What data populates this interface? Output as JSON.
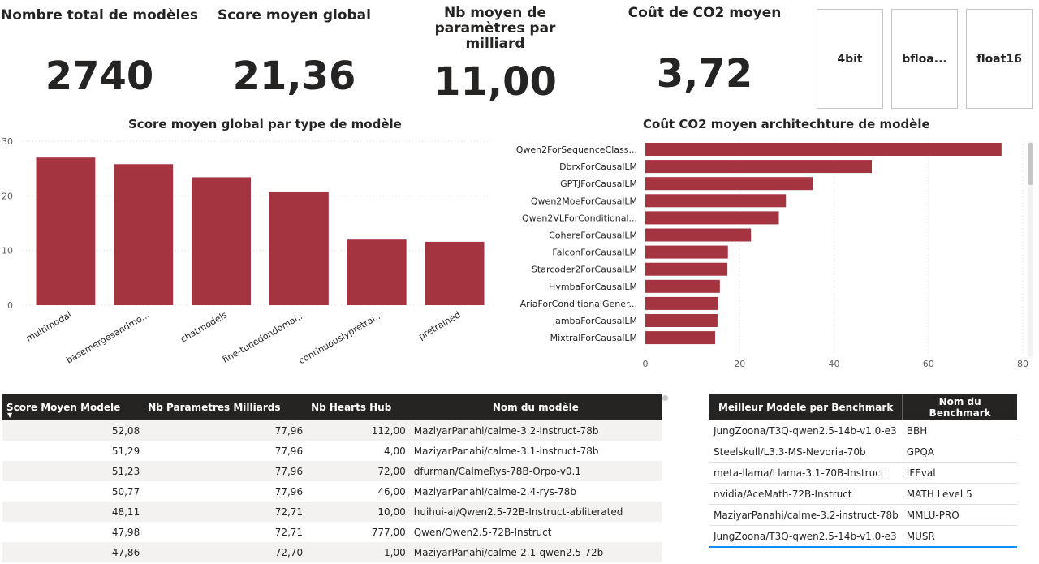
{
  "kpis": [
    {
      "title": "Nombre total de modèles",
      "value": "2740"
    },
    {
      "title": "Score moyen global",
      "value": "21,36"
    },
    {
      "title": "Nb moyen de paramètres par milliard",
      "value": "11,00"
    },
    {
      "title": "Coût de CO2 moyen",
      "value": "3,72"
    }
  ],
  "slicers": [
    "4bit",
    "bfloa...",
    "float16"
  ],
  "colors": {
    "bar": "#a4343f",
    "header": "#252423",
    "accent": "#118dff"
  },
  "chart_data": [
    {
      "type": "bar",
      "title": "Score moyen global par type de modèle",
      "categories": [
        "multimodal",
        "basemergesandmo...",
        "chatmodels",
        "fine-tunedondomai...",
        "continuouslypretrai...",
        "pretrained"
      ],
      "values": [
        27.0,
        25.8,
        23.4,
        20.8,
        12.0,
        11.6
      ],
      "yticks": [
        0,
        10,
        20,
        30
      ],
      "ylim": [
        0,
        30
      ]
    },
    {
      "type": "bar",
      "orientation": "horizontal",
      "title": "Coût CO2 moyen architechture de modèle",
      "categories": [
        "Qwen2ForSequenceClass...",
        "DbrxForCausalLM",
        "GPTJForCausalLM",
        "Qwen2MoeForCausalLM",
        "Qwen2VLForConditional...",
        "CohereForCausalLM",
        "FalconForCausalLM",
        "Starcoder2ForCausalLM",
        "HymbaForCausalLM",
        "AriaForConditionalGener...",
        "JambaForCausalLM",
        "MixtralForCausalLM"
      ],
      "values": [
        75.5,
        48.0,
        35.5,
        29.8,
        28.3,
        22.4,
        17.5,
        17.4,
        15.8,
        15.4,
        15.3,
        14.8
      ],
      "xticks": [
        0,
        20,
        40,
        60,
        80
      ],
      "xlim": [
        0,
        80
      ]
    }
  ],
  "models_table": {
    "headers": [
      "Score Moyen Modele",
      "Nb Parametres Milliards",
      "Nb Hearts Hub",
      "Nom du modèle"
    ],
    "rows": [
      [
        "52,08",
        "77,96",
        "112,00",
        "MaziyarPanahi/calme-3.2-instruct-78b"
      ],
      [
        "51,29",
        "77,96",
        "4,00",
        "MaziyarPanahi/calme-3.1-instruct-78b"
      ],
      [
        "51,23",
        "77,96",
        "72,00",
        "dfurman/CalmeRys-78B-Orpo-v0.1"
      ],
      [
        "50,77",
        "77,96",
        "46,00",
        "MaziyarPanahi/calme-2.4-rys-78b"
      ],
      [
        "48,11",
        "72,71",
        "10,00",
        "huihui-ai/Qwen2.5-72B-Instruct-abliterated"
      ],
      [
        "47,98",
        "72,71",
        "777,00",
        "Qwen/Qwen2.5-72B-Instruct"
      ],
      [
        "47,86",
        "72,70",
        "1,00",
        "MaziyarPanahi/calme-2.1-qwen2.5-72b"
      ]
    ]
  },
  "bench_table": {
    "headers": [
      "Meilleur Modele par Benchmark",
      "Nom du Benchmark"
    ],
    "rows": [
      [
        "JungZoona/T3Q-qwen2.5-14b-v1.0-e3",
        "BBH"
      ],
      [
        "Steelskull/L3.3-MS-Nevoria-70b",
        "GPQA"
      ],
      [
        "meta-llama/Llama-3.1-70B-Instruct",
        "IFEval"
      ],
      [
        "nvidia/AceMath-72B-Instruct",
        "MATH Level 5"
      ],
      [
        "MaziyarPanahi/calme-3.2-instruct-78b",
        "MMLU-PRO"
      ],
      [
        "JungZoona/T3Q-qwen2.5-14b-v1.0-e3",
        "MUSR"
      ]
    ]
  }
}
